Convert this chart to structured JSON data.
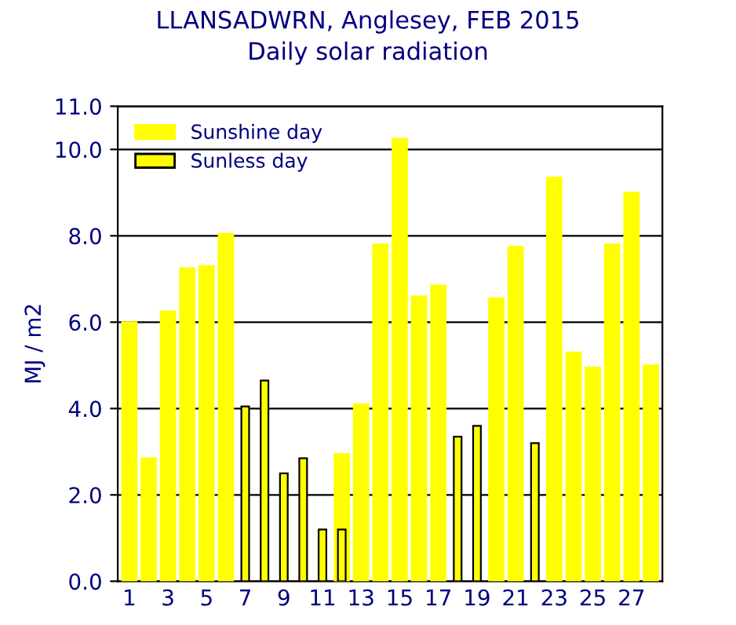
{
  "chart_data": {
    "type": "bar",
    "title": "LLANSADWRN, Anglesey, FEB 2015",
    "subtitle": "Daily solar radiation",
    "ylabel": "MJ / m2",
    "categories": [
      "1",
      null,
      "3",
      null,
      "5",
      null,
      "7",
      null,
      "9",
      null,
      "11",
      null,
      "13",
      null,
      "15",
      null,
      "17",
      null,
      "19",
      null,
      "21",
      null,
      "23",
      null,
      "25",
      null,
      "27",
      null
    ],
    "series": [
      {
        "name": "Sunshine day",
        "color": "#ffff00",
        "values": [
          6.0,
          2.85,
          6.25,
          7.25,
          7.3,
          8.05,
          null,
          null,
          null,
          null,
          null,
          2.95,
          4.1,
          7.8,
          10.25,
          6.6,
          6.85,
          null,
          null,
          6.55,
          7.75,
          null,
          9.35,
          5.3,
          4.95,
          7.8,
          9.0,
          5.0
        ]
      },
      {
        "name": "Sunless day",
        "color": "#ffff00",
        "values": [
          null,
          null,
          null,
          null,
          null,
          null,
          4.05,
          4.65,
          2.5,
          2.85,
          1.2,
          1.2,
          null,
          null,
          null,
          null,
          null,
          3.35,
          3.6,
          null,
          null,
          3.2,
          null,
          null,
          null,
          null,
          null,
          null
        ]
      }
    ],
    "ylim": [
      0,
      11
    ],
    "yticks": [
      {
        "value": 0,
        "label": "0.0"
      },
      {
        "value": 2,
        "label": "2.0"
      },
      {
        "value": 4,
        "label": "4.0"
      },
      {
        "value": 6,
        "label": "6.0"
      },
      {
        "value": 8,
        "label": "8.0"
      },
      {
        "value": 10,
        "label": "10.0"
      },
      {
        "value": 11,
        "label": "11.0"
      }
    ],
    "grid": "y",
    "legend": "top left"
  }
}
